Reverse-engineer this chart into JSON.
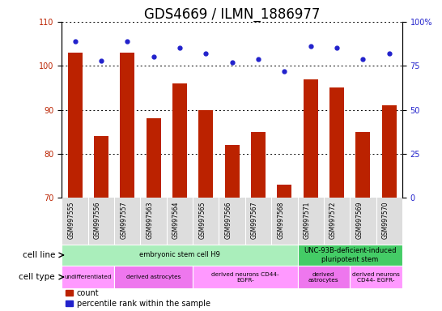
{
  "title": "GDS4669 / ILMN_1886977",
  "samples": [
    "GSM997555",
    "GSM997556",
    "GSM997557",
    "GSM997563",
    "GSM997564",
    "GSM997565",
    "GSM997566",
    "GSM997567",
    "GSM997568",
    "GSM997571",
    "GSM997572",
    "GSM997569",
    "GSM997570"
  ],
  "bar_tops": [
    103,
    84,
    103,
    88,
    96,
    90,
    82,
    85,
    73,
    97,
    95,
    85,
    91
  ],
  "bar_bottom": 70,
  "percentile_values": [
    89,
    78,
    89,
    80,
    85,
    82,
    77,
    79,
    72,
    86,
    85,
    79,
    82
  ],
  "ylim_left": [
    70,
    110
  ],
  "ylim_right": [
    0,
    100
  ],
  "yticks_left": [
    70,
    80,
    90,
    100,
    110
  ],
  "yticks_right": [
    0,
    25,
    50,
    75,
    100
  ],
  "bar_color": "#BB2200",
  "dot_color": "#2222CC",
  "cell_line_groups": [
    {
      "label": "embryonic stem cell H9",
      "start": 0,
      "end": 9,
      "color": "#AAEEBB"
    },
    {
      "label": "UNC-93B-deficient-induced\npluripotent stem",
      "start": 9,
      "end": 13,
      "color": "#44CC66"
    }
  ],
  "cell_type_groups": [
    {
      "label": "undifferentiated",
      "start": 0,
      "end": 2,
      "color": "#FF99FF"
    },
    {
      "label": "derived astrocytes",
      "start": 2,
      "end": 5,
      "color": "#EE77EE"
    },
    {
      "label": "derived neurons CD44-\nEGFR-",
      "start": 5,
      "end": 9,
      "color": "#FF99FF"
    },
    {
      "label": "derived\nastrocytes",
      "start": 9,
      "end": 11,
      "color": "#EE77EE"
    },
    {
      "label": "derived neurons\nCD44- EGFR-",
      "start": 11,
      "end": 13,
      "color": "#FF99FF"
    }
  ],
  "row_label_cell_line": "cell line",
  "row_label_cell_type": "cell type",
  "legend_count_label": "count",
  "legend_pct_label": "percentile rank within the sample",
  "title_fontsize": 12,
  "tick_fontsize": 7,
  "bar_width": 0.55
}
